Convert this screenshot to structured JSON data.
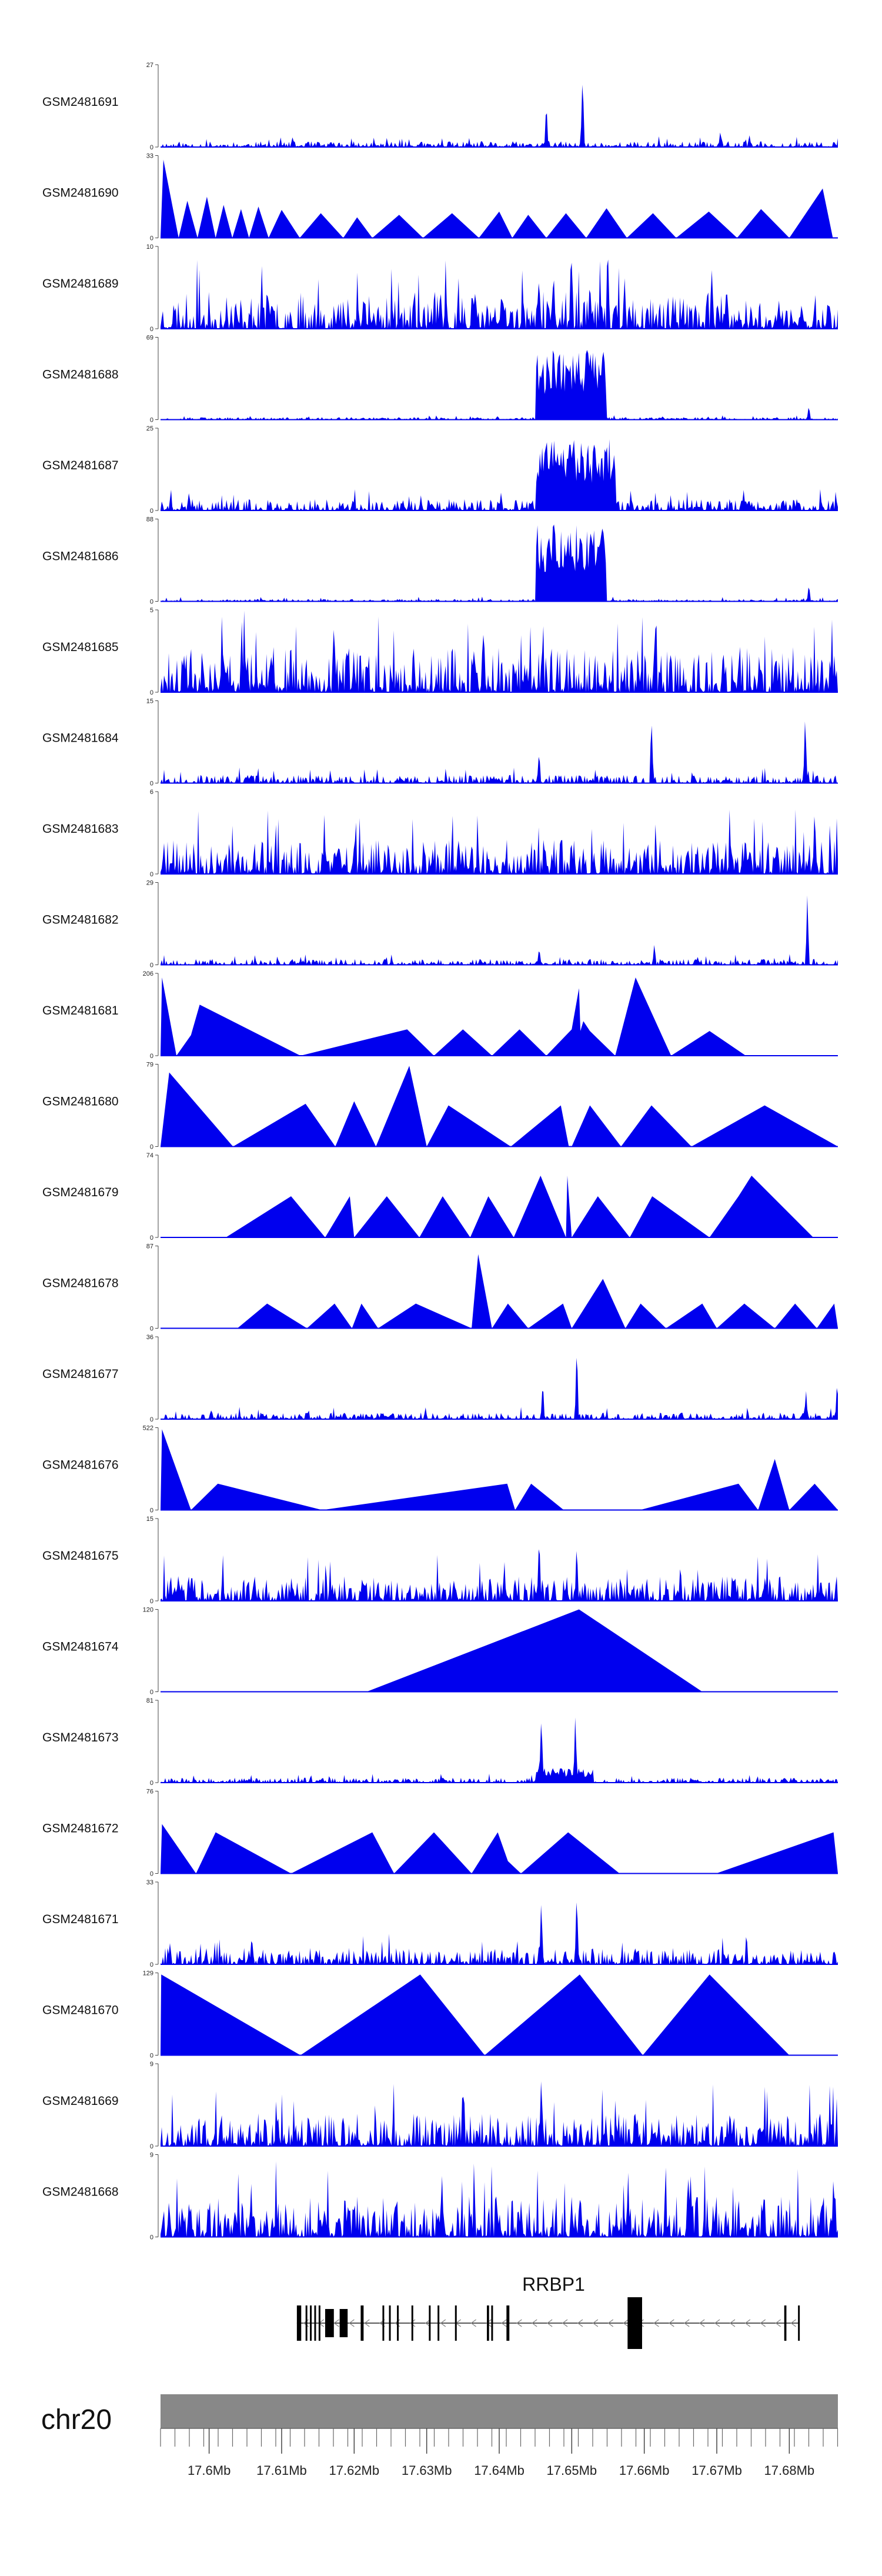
{
  "chart_data": {
    "type": "area",
    "title": "",
    "xlabel": "",
    "ylabel": "",
    "fill_color": "#0000ee",
    "xlim": [
      17.5933,
      17.6867
    ],
    "x_tick_values": [
      17.6,
      17.61,
      17.62,
      17.63,
      17.64,
      17.65,
      17.66,
      17.67,
      17.68
    ],
    "x_tick_labels": [
      "17.6Mb",
      "17.61Mb",
      "17.62Mb",
      "17.63Mb",
      "17.64Mb",
      "17.65Mb",
      "17.66Mb",
      "17.67Mb",
      "17.68Mb"
    ],
    "chromosome": "chr20",
    "gene": {
      "name": "RRBP1",
      "strand": "-",
      "start": 17.6121,
      "end": 17.6814,
      "exons": [
        [
          17.6121,
          17.6127
        ],
        [
          17.6133,
          17.6135
        ],
        [
          17.6139,
          17.6141
        ],
        [
          17.6145,
          17.6147
        ],
        [
          17.6151,
          17.6153
        ],
        [
          17.616,
          17.6172
        ],
        [
          17.618,
          17.6191
        ],
        [
          17.6209,
          17.6213
        ],
        [
          17.6239,
          17.6241
        ],
        [
          17.6248,
          17.625
        ],
        [
          17.6259,
          17.6261
        ],
        [
          17.6279,
          17.6281
        ],
        [
          17.6303,
          17.6305
        ],
        [
          17.6315,
          17.6317
        ],
        [
          17.6339,
          17.6341
        ],
        [
          17.6383,
          17.6386
        ],
        [
          17.6389,
          17.6391
        ],
        [
          17.641,
          17.6414
        ],
        [
          17.6577,
          17.6597
        ],
        [
          17.6793,
          17.6796
        ],
        [
          17.6812,
          17.6814
        ]
      ]
    },
    "series": [
      {
        "name": "GSM2481691",
        "ymax": 27,
        "style": "dense",
        "seed": 11,
        "level": 0.07,
        "spikes": [
          [
            17.6465,
            0.58
          ],
          [
            17.6515,
            1.0
          ],
          [
            17.6705,
            0.22
          ],
          [
            17.6745,
            0.18
          ]
        ]
      },
      {
        "name": "GSM2481690",
        "ymax": 33,
        "style": "sparse",
        "x": [
          17.5933,
          17.5937,
          17.5958,
          17.597,
          17.5984,
          17.5997,
          17.6009,
          17.602,
          17.6032,
          17.6044,
          17.6055,
          17.6068,
          17.6082,
          17.61,
          17.6125,
          17.6154,
          17.6185,
          17.6204,
          17.6225,
          17.6262,
          17.6295,
          17.6335,
          17.6372,
          17.64,
          17.6418,
          17.644,
          17.6465,
          17.6492,
          17.652,
          17.6548,
          17.6576,
          17.6612,
          17.6644,
          17.6689,
          17.6728,
          17.6761,
          17.68,
          17.6846,
          17.686,
          17.6867
        ],
        "y": [
          0,
          0.95,
          0,
          0.45,
          0,
          0.5,
          0,
          0.4,
          0,
          0.35,
          0,
          0.38,
          0,
          0.34,
          0,
          0.3,
          0,
          0.25,
          0,
          0.28,
          0,
          0.3,
          0,
          0.32,
          0,
          0.28,
          0,
          0.3,
          0,
          0.36,
          0,
          0.3,
          0,
          0.32,
          0,
          0.35,
          0,
          0.6,
          0,
          0
        ]
      },
      {
        "name": "GSM2481689",
        "ymax": 10,
        "style": "dense",
        "seed": 23,
        "level": 0.45,
        "spikes": [
          [
            17.6455,
            0.7
          ],
          [
            17.6475,
            0.9
          ],
          [
            17.65,
            1.0
          ],
          [
            17.6525,
            0.75
          ]
        ]
      },
      {
        "name": "GSM2481688",
        "ymax": 69,
        "style": "dense",
        "seed": 37,
        "level": 0.03,
        "blocks": [
          [
            17.645,
            17.6548,
            0.85
          ]
        ],
        "spikes": [
          [
            17.6827,
            0.2
          ]
        ]
      },
      {
        "name": "GSM2481687",
        "ymax": 25,
        "style": "dense",
        "seed": 41,
        "level": 0.14,
        "blocks": [
          [
            17.645,
            17.656,
            0.9
          ]
        ],
        "spikes": [
          [
            17.6737,
            0.3
          ]
        ]
      },
      {
        "name": "GSM2481686",
        "ymax": 88,
        "style": "dense",
        "seed": 53,
        "level": 0.03,
        "blocks": [
          [
            17.645,
            17.6548,
            0.95
          ]
        ],
        "spikes": [
          [
            17.6827,
            0.22
          ]
        ]
      },
      {
        "name": "GSM2481685",
        "ymax": 5,
        "style": "dense",
        "seed": 61,
        "level": 0.55,
        "spikes": [
          [
            17.6045,
            0.9
          ],
          [
            17.6615,
            0.9
          ]
        ]
      },
      {
        "name": "GSM2481684",
        "ymax": 15,
        "style": "dense",
        "seed": 67,
        "level": 0.1,
        "spikes": [
          [
            17.6455,
            0.5
          ],
          [
            17.661,
            0.9
          ],
          [
            17.6822,
            0.95
          ]
        ]
      },
      {
        "name": "GSM2481683",
        "ymax": 6,
        "style": "dense",
        "seed": 71,
        "level": 0.42,
        "spikes": [
          [
            17.6835,
            1.0
          ]
        ]
      },
      {
        "name": "GSM2481682",
        "ymax": 29,
        "style": "dense",
        "seed": 79,
        "level": 0.07,
        "spikes": [
          [
            17.6455,
            0.25
          ],
          [
            17.6614,
            0.3
          ],
          [
            17.6825,
            0.95
          ]
        ]
      },
      {
        "name": "GSM2481681",
        "ymax": 206,
        "style": "sparse",
        "x": [
          17.5933,
          17.5935,
          17.5955,
          17.5975,
          17.5987,
          17.6126,
          17.6273,
          17.631,
          17.635,
          17.639,
          17.6428,
          17.6465,
          17.65,
          17.651,
          17.6512,
          17.6516,
          17.6525,
          17.656,
          17.6588,
          17.6637,
          17.669,
          17.674,
          17.678,
          17.6867
        ],
        "y": [
          0,
          0.95,
          0,
          0.25,
          0.62,
          0,
          0.32,
          0,
          0.32,
          0,
          0.32,
          0,
          0.32,
          0.82,
          0.3,
          0.42,
          0.3,
          0,
          0.95,
          0,
          0.3,
          0,
          0,
          0
        ]
      },
      {
        "name": "GSM2481680",
        "ymax": 79,
        "style": "sparse",
        "x": [
          17.5933,
          17.5945,
          17.6033,
          17.6133,
          17.6174,
          17.62,
          17.623,
          17.6276,
          17.63,
          17.633,
          17.6416,
          17.6485,
          17.6496,
          17.65,
          17.6525,
          17.6568,
          17.661,
          17.6665,
          17.6766,
          17.6867
        ],
        "y": [
          0,
          0.9,
          0,
          0.52,
          0,
          0.55,
          0,
          0.98,
          0,
          0.5,
          0,
          0.5,
          0,
          0,
          0.5,
          0,
          0.5,
          0,
          0.5,
          0
        ]
      },
      {
        "name": "GSM2481679",
        "ymax": 74,
        "style": "sparse",
        "x": [
          17.6023,
          17.6113,
          17.616,
          17.6194,
          17.62,
          17.6245,
          17.629,
          17.6322,
          17.636,
          17.6385,
          17.642,
          17.6457,
          17.6492,
          17.6494,
          17.65,
          17.6536,
          17.658,
          17.6611,
          17.669,
          17.673,
          17.6748,
          17.6833,
          17.685,
          17.6867
        ],
        "y": [
          0,
          0.5,
          0,
          0.5,
          0,
          0.5,
          0,
          0.5,
          0,
          0.5,
          0,
          0.75,
          0,
          0.75,
          0,
          0.5,
          0,
          0.5,
          0,
          0.5,
          0.75,
          0,
          0,
          0
        ]
      },
      {
        "name": "GSM2481678",
        "ymax": 87,
        "style": "sparse",
        "x": [
          17.5933,
          17.6039,
          17.608,
          17.6135,
          17.6173,
          17.6197,
          17.621,
          17.6233,
          17.6285,
          17.6362,
          17.6371,
          17.639,
          17.6412,
          17.644,
          17.6488,
          17.65,
          17.6543,
          17.6574,
          17.6595,
          17.663,
          17.668,
          17.67,
          17.6738,
          17.678,
          17.6808,
          17.6838,
          17.6862,
          17.6867
        ],
        "y": [
          0,
          0,
          0.3,
          0,
          0.3,
          0,
          0.3,
          0,
          0.3,
          0,
          0.9,
          0,
          0.3,
          0,
          0.3,
          0,
          0.6,
          0,
          0.3,
          0,
          0.3,
          0,
          0.3,
          0,
          0.3,
          0,
          0.3,
          0
        ]
      },
      {
        "name": "GSM2481677",
        "ymax": 36,
        "style": "dense",
        "seed": 97,
        "level": 0.08,
        "spikes": [
          [
            17.646,
            0.55
          ],
          [
            17.6507,
            0.95
          ],
          [
            17.6823,
            0.4
          ],
          [
            17.6866,
            0.55
          ]
        ]
      },
      {
        "name": "GSM2481676",
        "ymax": 522,
        "style": "sparse",
        "x": [
          17.5933,
          17.5935,
          17.5975,
          17.6012,
          17.6156,
          17.6411,
          17.6422,
          17.6444,
          17.6489,
          17.6594,
          17.673,
          17.6757,
          17.678,
          17.68,
          17.6835,
          17.6867
        ],
        "y": [
          0,
          0.98,
          0,
          0.32,
          0,
          0.32,
          0,
          0.32,
          0,
          0,
          0.32,
          0,
          0.62,
          0,
          0.32,
          0
        ]
      },
      {
        "name": "GSM2481675",
        "ymax": 15,
        "style": "dense",
        "seed": 103,
        "level": 0.3,
        "spikes": [
          [
            17.6455,
            0.9
          ],
          [
            17.6507,
            0.85
          ],
          [
            17.665,
            0.55
          ]
        ]
      },
      {
        "name": "GSM2481674",
        "ymax": 120,
        "style": "sparse",
        "x": [
          17.5933,
          17.6217,
          17.651,
          17.668,
          17.6867
        ],
        "y": [
          0,
          0,
          1.0,
          0,
          0
        ]
      },
      {
        "name": "GSM2481673",
        "ymax": 81,
        "style": "dense",
        "seed": 109,
        "level": 0.06,
        "blocks": [
          [
            17.645,
            17.653,
            0.18
          ]
        ],
        "spikes": [
          [
            17.6458,
            0.98
          ],
          [
            17.6505,
            0.9
          ]
        ]
      },
      {
        "name": "GSM2481672",
        "ymax": 76,
        "style": "sparse",
        "x": [
          17.5933,
          17.5935,
          17.5982,
          17.6009,
          17.6113,
          17.6225,
          17.6255,
          17.631,
          17.6362,
          17.6398,
          17.6412,
          17.643,
          17.6495,
          17.6566,
          17.6699,
          17.6861,
          17.6867
        ],
        "y": [
          0,
          0.6,
          0,
          0.5,
          0,
          0.5,
          0,
          0.5,
          0,
          0.5,
          0.15,
          0,
          0.5,
          0,
          0,
          0.5,
          0
        ]
      },
      {
        "name": "GSM2481671",
        "ymax": 33,
        "style": "dense",
        "seed": 113,
        "level": 0.2,
        "spikes": [
          [
            17.6458,
            0.85
          ],
          [
            17.6507,
            1.0
          ]
        ]
      },
      {
        "name": "GSM2481670",
        "ymax": 129,
        "style": "sparse",
        "x": [
          17.5933,
          17.5934,
          17.6126,
          17.6291,
          17.638,
          17.6511,
          17.6598,
          17.669,
          17.68,
          17.6867
        ],
        "y": [
          0,
          0.98,
          0,
          0.98,
          0,
          0.98,
          0,
          0.98,
          0,
          0
        ]
      },
      {
        "name": "GSM2481669",
        "ymax": 9,
        "style": "dense",
        "seed": 127,
        "level": 0.4,
        "spikes": [
          [
            17.6458,
            1.0
          ]
        ]
      },
      {
        "name": "GSM2481668",
        "ymax": 9,
        "style": "dense",
        "seed": 131,
        "level": 0.5,
        "spikes": [
          [
            17.6861,
            0.95
          ]
        ]
      }
    ]
  }
}
